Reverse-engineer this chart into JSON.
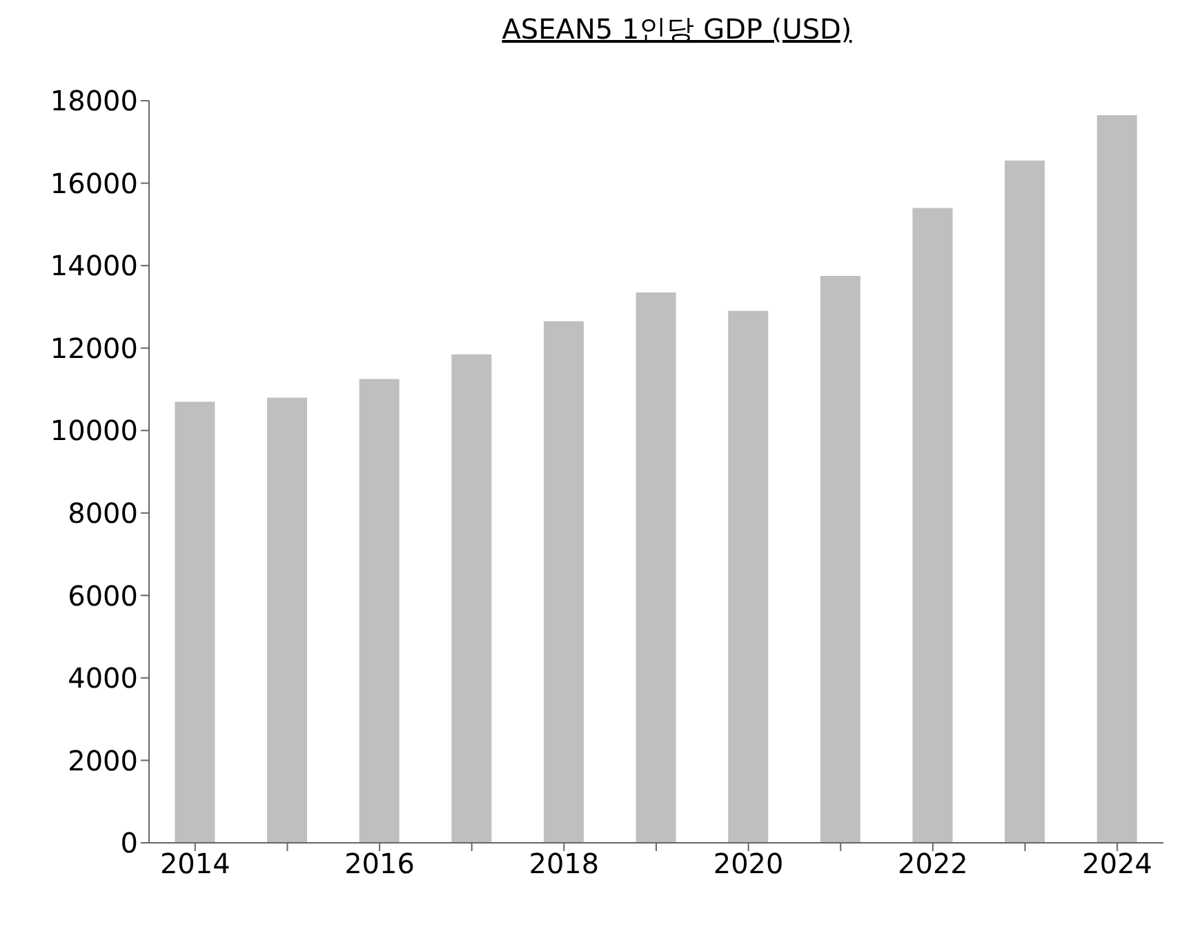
{
  "chart_data": {
    "type": "bar",
    "title": "ASEAN5 1인당 GDP (USD)",
    "categories": [
      "2014",
      null,
      "2016",
      null,
      "2018",
      null,
      "2020",
      null,
      "2022",
      null,
      "2024"
    ],
    "values": [
      10700,
      10800,
      11250,
      11850,
      12650,
      13350,
      12900,
      13750,
      15400,
      16550,
      17650
    ],
    "color": "#bfbfbf",
    "ylim": [
      0,
      18000
    ],
    "yticks": [
      0,
      2000,
      4000,
      6000,
      8000,
      10000,
      12000,
      14000,
      16000,
      18000
    ],
    "grid": false
  }
}
